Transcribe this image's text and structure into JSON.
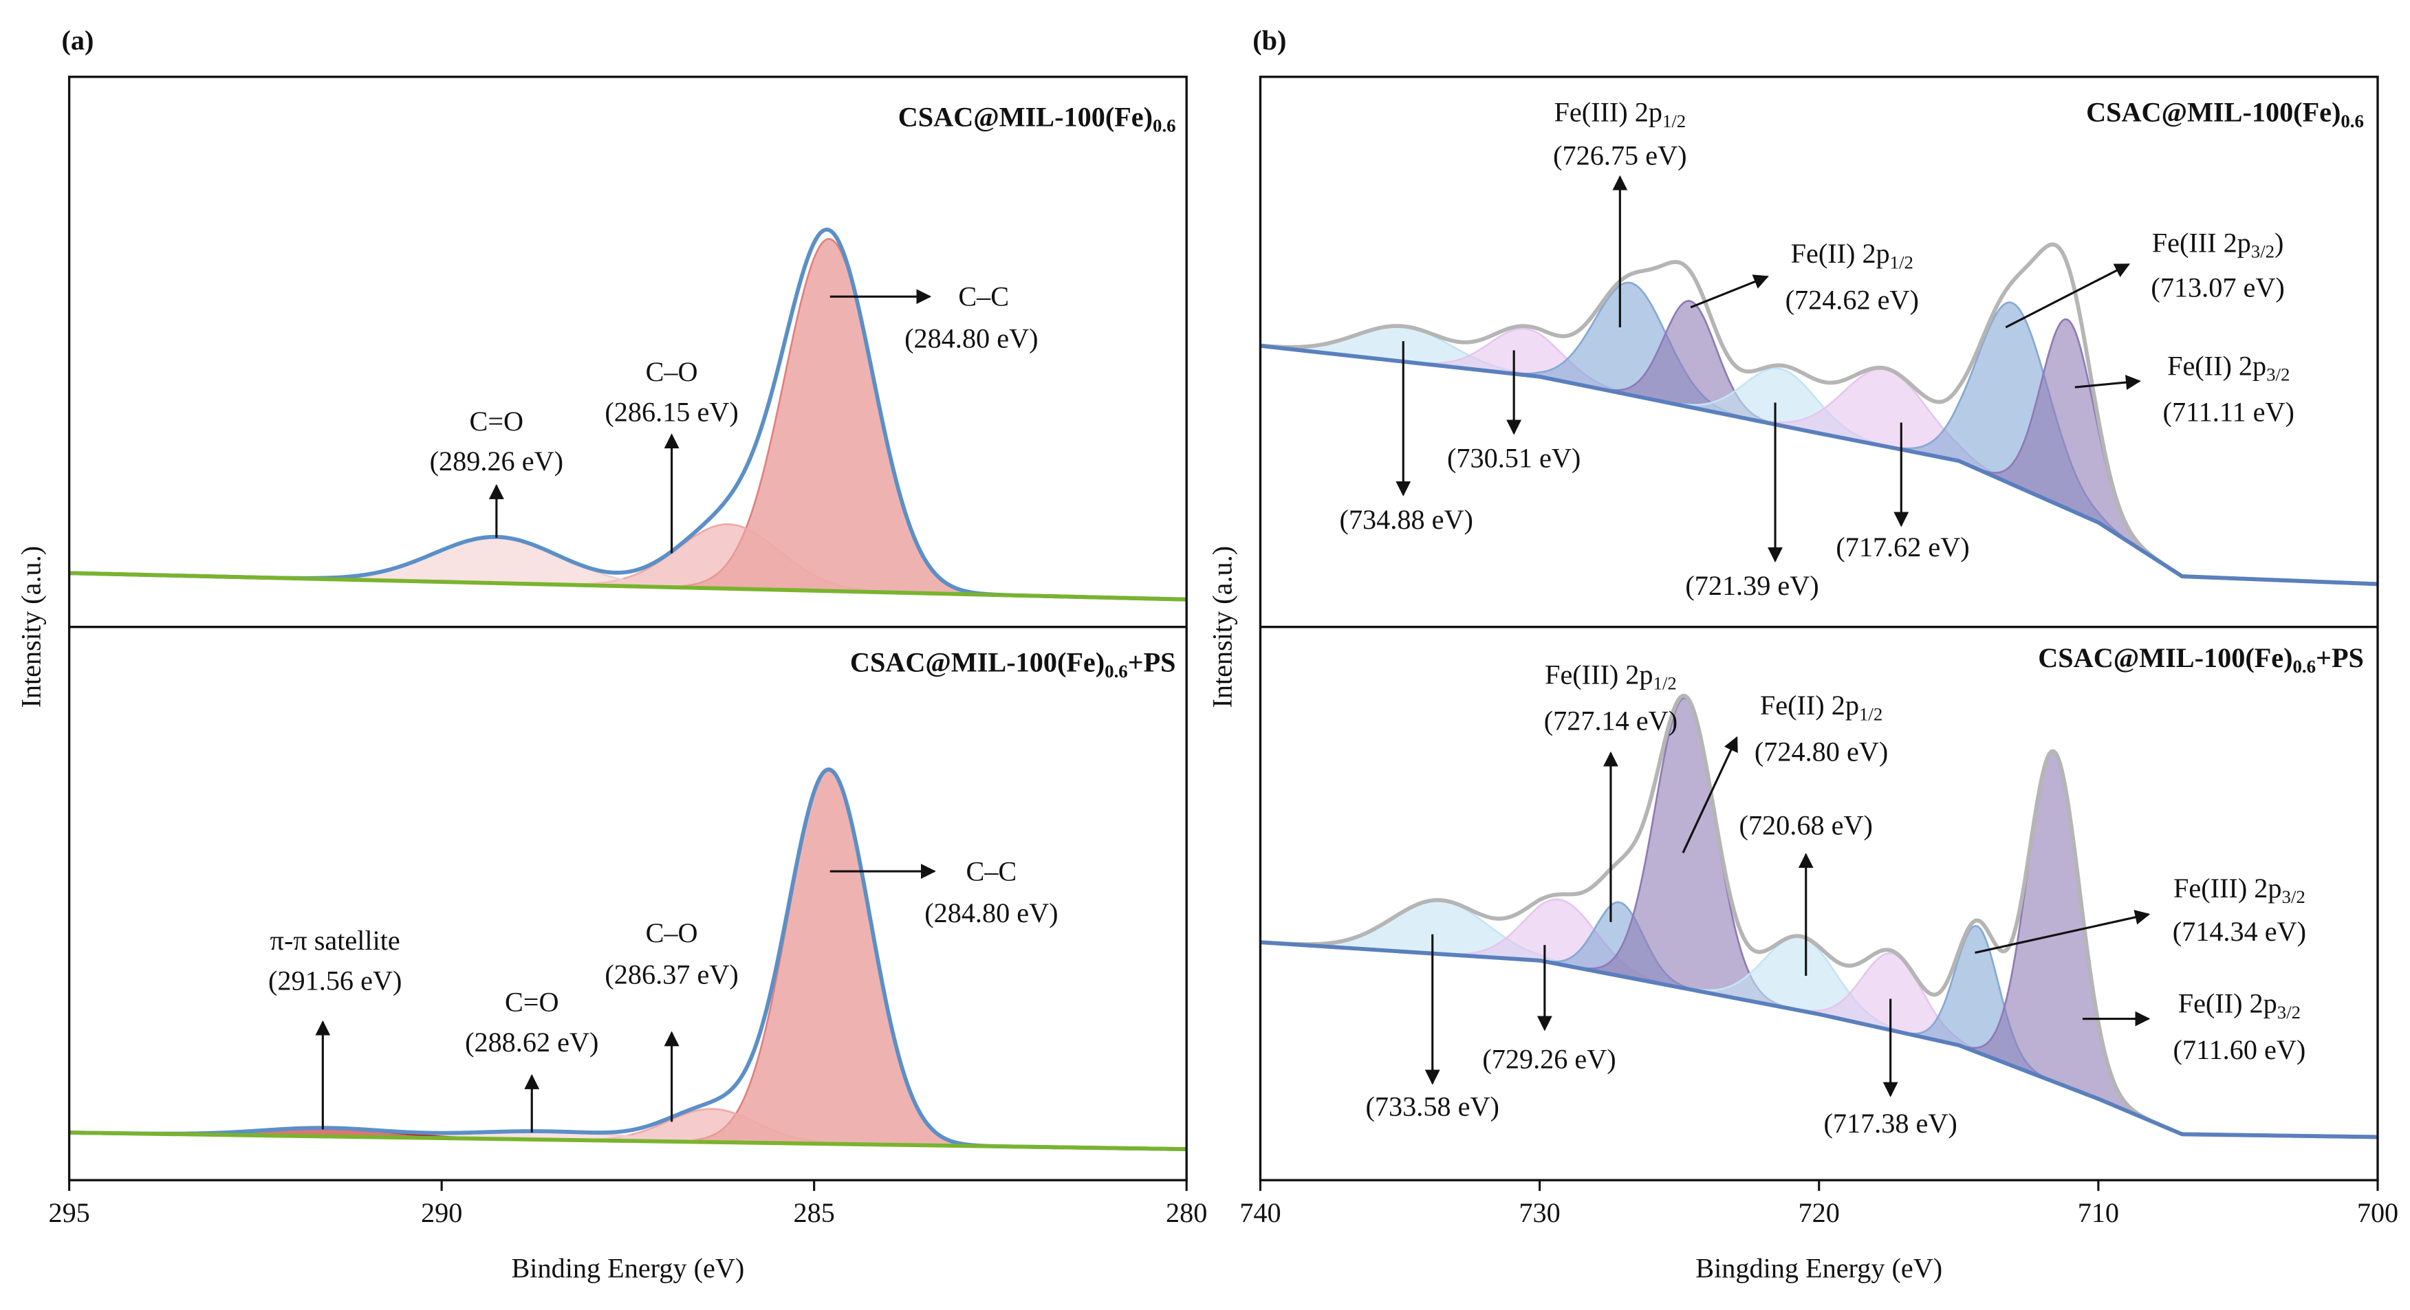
{
  "chart_data": [
    {
      "type": "peakfit",
      "panel_label": "(a)",
      "ylabel": "Intensity (a.u.)",
      "title": "CSAC@MIL-100(Fe)",
      "title_sub": "0.6",
      "xlim": [
        295,
        280
      ],
      "ylim": [
        0,
        100
      ],
      "envelope_color": "#5b8fc7",
      "background_color": "#7ab32e",
      "background": {
        "x": [
          295,
          280
        ],
        "values": [
          9.8,
          5.0
        ]
      },
      "peaks": [
        {
          "label": "C–C",
          "center": 284.8,
          "center_label": "(284.80 eV)",
          "height": 64,
          "fwhm": 1.4,
          "color": "#e2807d"
        },
        {
          "label": "C–O",
          "center": 286.15,
          "center_label": "(286.15 eV)",
          "height": 11.7,
          "fwhm": 1.6,
          "color": "#eeaaa8"
        },
        {
          "label": "C=O",
          "center": 289.26,
          "center_label": "(289.26 eV)",
          "height": 8.4,
          "fwhm": 2.0,
          "color": "#f4cfcf"
        }
      ]
    },
    {
      "type": "peakfit",
      "title": "CSAC@MIL-100(Fe)",
      "title_sub": "0.6",
      "title_suffix": "+PS",
      "xlabel": "Binding Energy (eV)",
      "xlim": [
        295,
        280
      ],
      "xticks": [
        295,
        290,
        285,
        280
      ],
      "ylim": [
        0,
        100
      ],
      "envelope_color": "#5b8fc7",
      "background_color": "#7ab32e",
      "background": {
        "x": [
          295,
          280
        ],
        "values": [
          8.6,
          5.6
        ]
      },
      "peaks": [
        {
          "label": "C–C",
          "center": 284.8,
          "center_label": "(284.80 eV)",
          "height": 67.5,
          "fwhm": 1.3,
          "color": "#e2807d"
        },
        {
          "label": "C–O",
          "center": 286.37,
          "center_label": "(286.37 eV)",
          "height": 6,
          "fwhm": 1.4,
          "color": "#eeaaa8"
        },
        {
          "label": "C=O",
          "center": 288.62,
          "center_label": "(288.62 eV)",
          "height": 1.5,
          "fwhm": 2.5,
          "color": "#f4cfcf"
        },
        {
          "label": "π-π satellite",
          "center": 291.56,
          "center_label": "(291.56 eV)",
          "height": 1.5,
          "fwhm": 2.0,
          "color": "#c41a1a"
        }
      ]
    },
    {
      "type": "peakfit",
      "panel_label": "(b)",
      "ylabel": "Intensity (a.u.)",
      "title": "CSAC@MIL-100(Fe)",
      "title_sub": "0.6",
      "xlim": [
        740,
        700
      ],
      "ylim": [
        0,
        100
      ],
      "envelope_color": "#b5b5b5",
      "background_color": "#5a7fbd",
      "background": {
        "x": [
          740,
          730,
          720,
          715,
          710,
          707,
          700
        ],
        "values": [
          51.1,
          45.5,
          35.2,
          30.2,
          19,
          9.2,
          7.8
        ]
      },
      "peaks": [
        {
          "center": 734.88,
          "center_label": "(734.88 eV)",
          "height": 6.4,
          "fwhm": 4,
          "color": "#c4e4f4"
        },
        {
          "center": 730.51,
          "center_label": "(730.51 eV)",
          "height": 8.4,
          "fwhm": 3,
          "color": "#e6c6ee"
        },
        {
          "label": "Fe(III) 2p",
          "label_sub": "1/2",
          "center": 726.75,
          "center_label": "(726.75 eV)",
          "height": 20.4,
          "fwhm": 3.0,
          "color": "#86a9d6"
        },
        {
          "label": "Fe(II) 2p",
          "label_sub": "1/2",
          "center": 724.62,
          "center_label": "(724.62 eV)",
          "height": 19.3,
          "fwhm": 2.2,
          "color": "#8f7bb6"
        },
        {
          "center": 721.39,
          "center_label": "(721.39 eV)",
          "height": 10.3,
          "fwhm": 3,
          "color": "#c4e4f4"
        },
        {
          "center": 717.62,
          "center_label": "(717.62 eV)",
          "height": 14,
          "fwhm": 3.5,
          "color": "#e6c6ee"
        },
        {
          "label": "Fe(III 2p",
          "label_sub": "3/2",
          "label_tail": ")",
          "center": 713.07,
          "center_label": "(713.07 eV)",
          "height": 33,
          "fwhm": 3.0,
          "color": "#86a9d6"
        },
        {
          "label": "Fe(II) 2p",
          "label_sub": "3/2",
          "center": 711.11,
          "center_label": "(711.11 eV)",
          "height": 34.4,
          "fwhm": 2.2,
          "color": "#8f7bb6"
        }
      ]
    },
    {
      "type": "peakfit",
      "title": "CSAC@MIL-100(Fe)",
      "title_sub": "0.6",
      "title_suffix": "+PS",
      "xlabel": "Bingding Energy (eV)",
      "xlim": [
        740,
        700
      ],
      "xticks": [
        740,
        730,
        720,
        710,
        700
      ],
      "ylim": [
        0,
        100
      ],
      "envelope_color": "#b5b5b5",
      "background_color": "#5a7fbd",
      "background": {
        "x": [
          740,
          730,
          720,
          715,
          710,
          707,
          700
        ],
        "values": [
          43,
          39.7,
          30,
          24.4,
          14.7,
          8.3,
          7.8
        ]
      },
      "peaks": [
        {
          "center": 733.58,
          "center_label": "(733.58 eV)",
          "height": 9.7,
          "fwhm": 4,
          "color": "#c4e4f4"
        },
        {
          "center": 729.26,
          "center_label": "(729.26 eV)",
          "height": 11.7,
          "fwhm": 3,
          "color": "#e6c6ee"
        },
        {
          "label": "Fe(III) 2p",
          "label_sub": "1/2",
          "center": 727.14,
          "center_label": "(727.14 eV)",
          "height": 13.3,
          "fwhm": 2.0,
          "color": "#86a9d6"
        },
        {
          "label": "Fe(II) 2p",
          "label_sub": "1/2",
          "center": 724.8,
          "center_label": "(724.80 eV)",
          "height": 52.5,
          "fwhm": 2.5,
          "color": "#8f7bb6"
        },
        {
          "center": 720.68,
          "center_label": "(720.68 eV)",
          "height": 13.3,
          "fwhm": 3,
          "color": "#c4e4f4"
        },
        {
          "center": 717.38,
          "center_label": "(717.38 eV)",
          "height": 13.9,
          "fwhm": 2.5,
          "color": "#e6c6ee"
        },
        {
          "label": "Fe(III) 2p",
          "label_sub": "3/2",
          "center": 714.34,
          "center_label": "(714.34 eV)",
          "height": 22.8,
          "fwhm": 1.8,
          "color": "#86a9d6"
        },
        {
          "label": "Fe(II) 2p",
          "label_sub": "3/2",
          "center": 711.6,
          "center_label": "(711.60 eV)",
          "height": 59.7,
          "fwhm": 2.2,
          "color": "#8f7bb6"
        }
      ]
    }
  ]
}
